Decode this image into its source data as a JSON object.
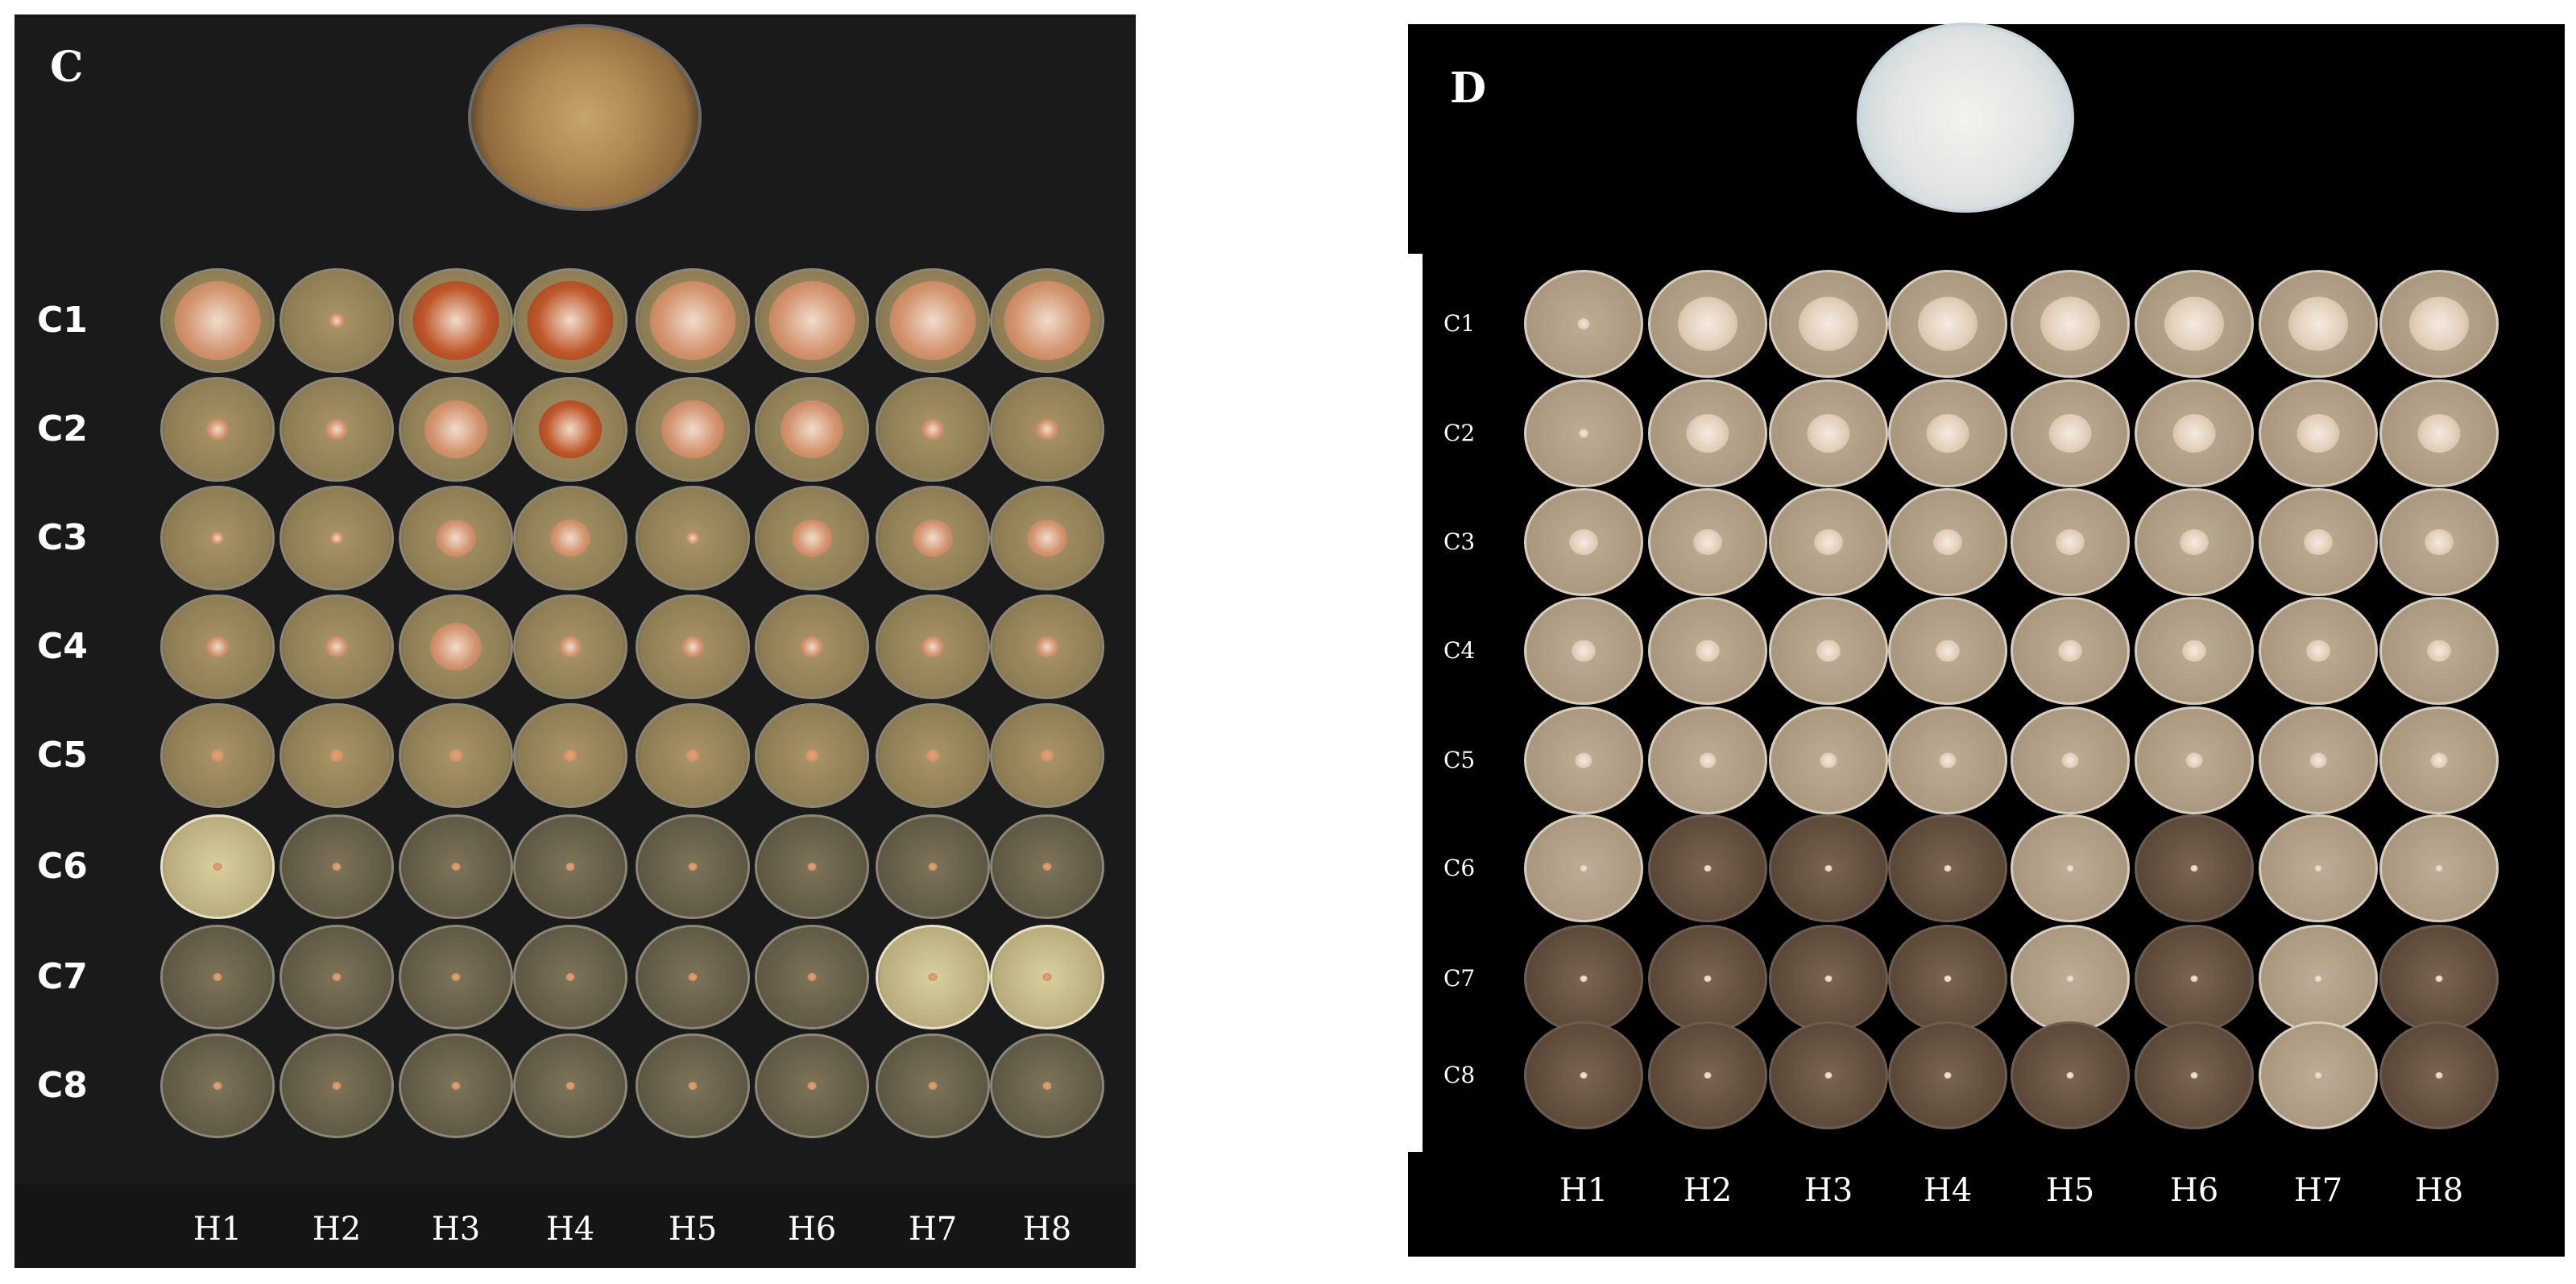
{
  "figure": {
    "panels": [
      {
        "id": "C",
        "letter": "C",
        "rows": [
          "C1",
          "C2",
          "C3",
          "C4",
          "C5",
          "C6",
          "C7",
          "C8"
        ],
        "columns": [
          "H1",
          "H2",
          "H3",
          "H4",
          "H5",
          "H6",
          "H7",
          "H8"
        ],
        "colors": {
          "background": "#1a1a1a",
          "dish": "#9a8a66",
          "colony": "#c98a5a",
          "reference_colony": "#c79a55"
        }
      },
      {
        "id": "D",
        "letter": "D",
        "rows": [
          "C1",
          "C2",
          "C3",
          "C4",
          "C5",
          "C6",
          "C7",
          "C8"
        ],
        "columns": [
          "H1",
          "H2",
          "H3",
          "H4",
          "H5",
          "H6",
          "H7",
          "H8"
        ],
        "colors": {
          "background": "#000000",
          "dish": "#b7a68e",
          "colony": "#e8d8c6",
          "reference_colony": "#dfe6ea"
        }
      }
    ]
  }
}
